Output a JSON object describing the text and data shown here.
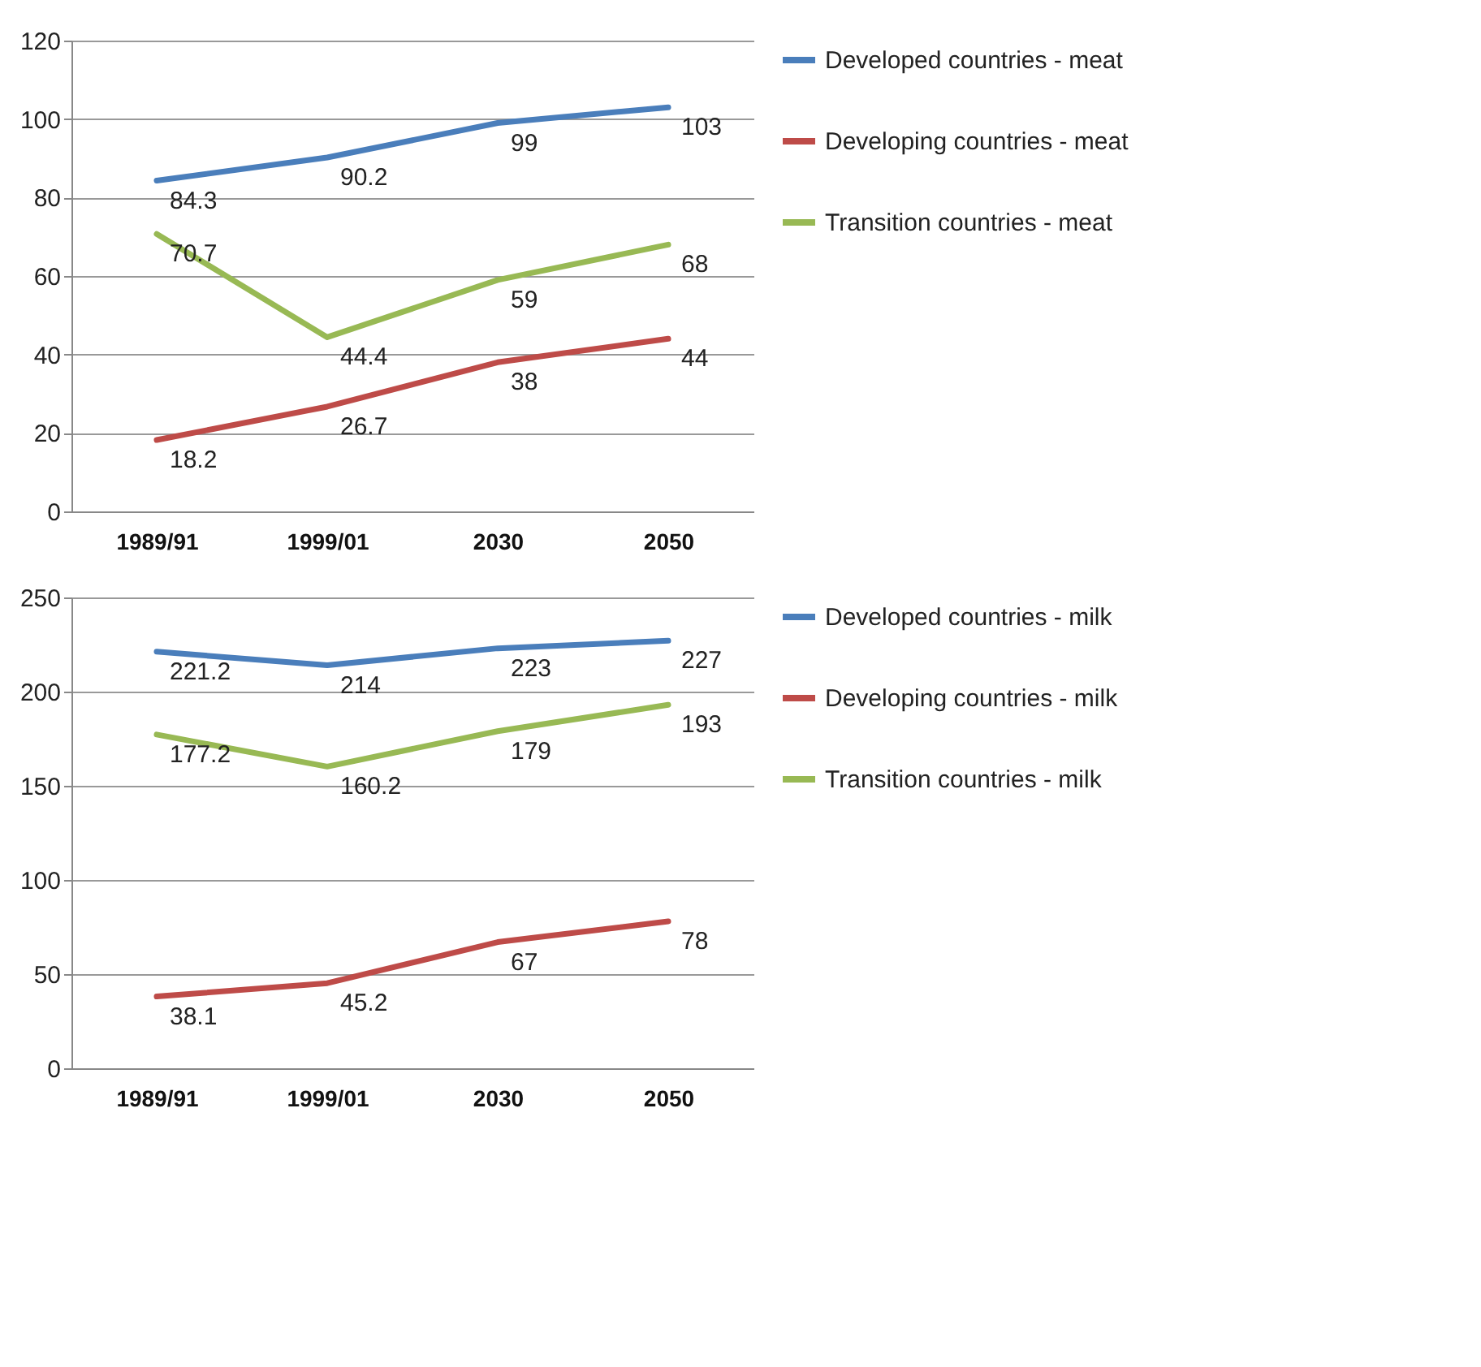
{
  "chart_data": [
    {
      "type": "line",
      "categories": [
        "1989/91",
        "1999/01",
        "2030",
        "2050"
      ],
      "ylim": [
        0,
        120
      ],
      "yticks": [
        0,
        20,
        40,
        60,
        80,
        100,
        120
      ],
      "grid": "y",
      "legend": "right",
      "data_labels": true,
      "series": [
        {
          "name": "Developed countries - meat",
          "color": "#4a7ebb",
          "values": [
            84.3,
            90.2,
            99,
            103
          ]
        },
        {
          "name": "Developing countries - meat",
          "color": "#be4b48",
          "values": [
            18.2,
            26.7,
            38,
            44
          ]
        },
        {
          "name": "Transition countries - meat",
          "color": "#98b954",
          "values": [
            70.7,
            44.4,
            59,
            68
          ]
        }
      ]
    },
    {
      "type": "line",
      "categories": [
        "1989/91",
        "1999/01",
        "2030",
        "2050"
      ],
      "ylim": [
        0,
        250
      ],
      "yticks": [
        0,
        50,
        100,
        150,
        200,
        250
      ],
      "grid": "y",
      "legend": "right",
      "data_labels": true,
      "series": [
        {
          "name": "Developed countries - milk",
          "color": "#4a7ebb",
          "values": [
            221.2,
            214,
            223,
            227
          ]
        },
        {
          "name": "Developing countries - milk",
          "color": "#be4b48",
          "values": [
            38.1,
            45.2,
            67,
            78
          ]
        },
        {
          "name": "Transition countries - milk",
          "color": "#98b954",
          "values": [
            177.2,
            160.2,
            179,
            193
          ]
        }
      ]
    }
  ]
}
